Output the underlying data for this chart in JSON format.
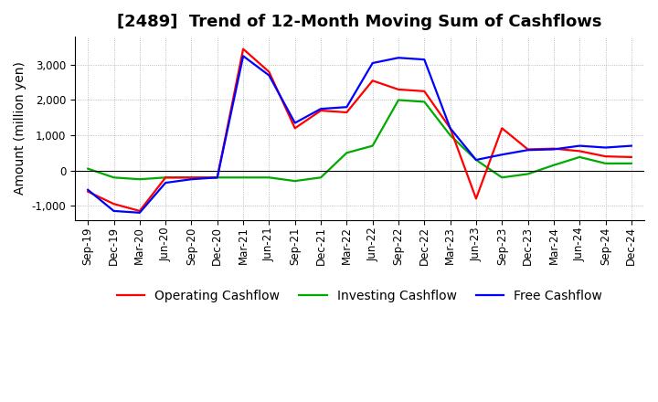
{
  "title": "[2489]  Trend of 12-Month Moving Sum of Cashflows",
  "ylabel": "Amount (million yen)",
  "x_labels": [
    "Sep-19",
    "Dec-19",
    "Mar-20",
    "Jun-20",
    "Sep-20",
    "Dec-20",
    "Mar-21",
    "Jun-21",
    "Sep-21",
    "Dec-21",
    "Mar-22",
    "Jun-22",
    "Sep-22",
    "Dec-22",
    "Mar-23",
    "Jun-23",
    "Sep-23",
    "Dec-23",
    "Mar-24",
    "Jun-24",
    "Sep-24",
    "Dec-24"
  ],
  "operating": [
    -600,
    -950,
    -1150,
    -200,
    -200,
    -200,
    3450,
    2800,
    1200,
    1700,
    1650,
    2550,
    2300,
    2250,
    1200,
    -800,
    1200,
    600,
    620,
    550,
    400,
    380
  ],
  "investing": [
    50,
    -200,
    -250,
    -200,
    -200,
    -200,
    -200,
    -200,
    -300,
    -200,
    500,
    700,
    2000,
    1950,
    1000,
    300,
    -200,
    -100,
    150,
    380,
    200,
    200
  ],
  "free": [
    -550,
    -1150,
    -1200,
    -350,
    -250,
    -200,
    3250,
    2700,
    1350,
    1750,
    1800,
    3050,
    3200,
    3150,
    1200,
    300,
    450,
    580,
    600,
    700,
    650,
    700
  ],
  "ylim": [
    -1400,
    3800
  ],
  "yticks": [
    -1000,
    0,
    1000,
    2000,
    3000
  ],
  "colors": {
    "operating": "#FF0000",
    "investing": "#00AA00",
    "free": "#0000FF"
  },
  "bg_color": "#FFFFFF",
  "grid_color": "#AAAAAA",
  "title_fontsize": 13,
  "label_fontsize": 10,
  "tick_fontsize": 8.5
}
